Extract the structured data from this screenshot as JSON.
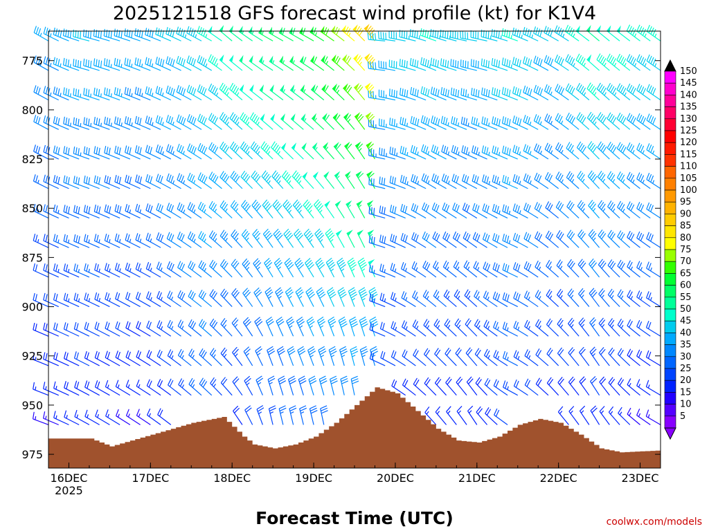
{
  "chart_data": {
    "type": "wind-barb-time-height",
    "title": "2025121518 GFS forecast wind profile (kt) for K1V4",
    "xlabel": "Forecast Time (UTC)",
    "ylabel": "",
    "x_ticks": [
      {
        "label": "16DEC",
        "sublabel": "2025",
        "hour": 6
      },
      {
        "label": "17DEC",
        "sublabel": "",
        "hour": 30
      },
      {
        "label": "18DEC",
        "sublabel": "",
        "hour": 54
      },
      {
        "label": "19DEC",
        "sublabel": "",
        "hour": 78
      },
      {
        "label": "20DEC",
        "sublabel": "",
        "hour": 102
      },
      {
        "label": "21DEC",
        "sublabel": "",
        "hour": 126
      },
      {
        "label": "22DEC",
        "sublabel": "",
        "hour": 150
      },
      {
        "label": "23DEC",
        "sublabel": "",
        "hour": 174
      }
    ],
    "x_range_hours": [
      0,
      180
    ],
    "y_ticks": [
      775,
      800,
      825,
      850,
      875,
      900,
      925,
      950,
      975
    ],
    "y_range_hpa": [
      760,
      982
    ],
    "levels_hpa": [
      765,
      780,
      795,
      810,
      825,
      840,
      855,
      870,
      885,
      900,
      915,
      930,
      945,
      960,
      975
    ],
    "times_hours": [
      0,
      3,
      6,
      9,
      12,
      15,
      18,
      21,
      24,
      27,
      30,
      33,
      36,
      39,
      42,
      45,
      48,
      51,
      54,
      57,
      60,
      63,
      66,
      69,
      72,
      75,
      78,
      81,
      84,
      87,
      90,
      93,
      96,
      99,
      102,
      105,
      108,
      111,
      114,
      117,
      120,
      123,
      126,
      129,
      132,
      135,
      138,
      141,
      144,
      147,
      150,
      153,
      156,
      159,
      162,
      165,
      168,
      171,
      174,
      177,
      180
    ],
    "profile_keyframes": [
      {
        "hour": 0,
        "speed_top": 35,
        "speed_bottom": 12,
        "dir_top": 300,
        "dir_bottom": 290
      },
      {
        "hour": 12,
        "speed_top": 40,
        "speed_bottom": 15,
        "dir_top": 285,
        "dir_bottom": 300
      },
      {
        "hour": 30,
        "speed_top": 38,
        "speed_bottom": 12,
        "dir_top": 290,
        "dir_bottom": 305
      },
      {
        "hour": 48,
        "speed_top": 45,
        "speed_bottom": 25,
        "dir_top": 300,
        "dir_bottom": 315
      },
      {
        "hour": 54,
        "speed_top": 50,
        "speed_bottom": 15,
        "dir_top": 310,
        "dir_bottom": 320
      },
      {
        "hour": 66,
        "speed_top": 55,
        "speed_bottom": 22,
        "dir_top": 300,
        "dir_bottom": 350
      },
      {
        "hour": 78,
        "speed_top": 60,
        "speed_bottom": 25,
        "dir_top": 300,
        "dir_bottom": 350
      },
      {
        "hour": 90,
        "speed_top": 75,
        "speed_bottom": 25,
        "dir_top": 310,
        "dir_bottom": 355
      },
      {
        "hour": 96,
        "speed_top": 85,
        "speed_bottom": 20,
        "dir_top": 320,
        "dir_bottom": 350
      },
      {
        "hour": 99,
        "speed_top": 40,
        "speed_bottom": 15,
        "dir_top": 275,
        "dir_bottom": 300
      },
      {
        "hour": 114,
        "speed_top": 45,
        "speed_bottom": 15,
        "dir_top": 290,
        "dir_bottom": 320
      },
      {
        "hour": 126,
        "speed_top": 40,
        "speed_bottom": 15,
        "dir_top": 280,
        "dir_bottom": 330
      },
      {
        "hour": 138,
        "speed_top": 45,
        "speed_bottom": 20,
        "dir_top": 290,
        "dir_bottom": 300
      },
      {
        "hour": 150,
        "speed_top": 40,
        "speed_bottom": 15,
        "dir_top": 300,
        "dir_bottom": 320
      },
      {
        "hour": 162,
        "speed_top": 50,
        "speed_bottom": 15,
        "dir_top": 310,
        "dir_bottom": 330
      },
      {
        "hour": 180,
        "speed_top": 45,
        "speed_bottom": 10,
        "dir_top": 305,
        "dir_bottom": 300
      }
    ],
    "terrain_pressure_hpa": [
      {
        "hour": 0,
        "p": 967
      },
      {
        "hour": 12,
        "p": 967
      },
      {
        "hour": 18,
        "p": 971
      },
      {
        "hour": 24,
        "p": 968
      },
      {
        "hour": 30,
        "p": 965
      },
      {
        "hour": 36,
        "p": 962
      },
      {
        "hour": 42,
        "p": 959
      },
      {
        "hour": 48,
        "p": 957
      },
      {
        "hour": 51,
        "p": 956
      },
      {
        "hour": 54,
        "p": 961
      },
      {
        "hour": 57,
        "p": 966
      },
      {
        "hour": 60,
        "p": 970
      },
      {
        "hour": 66,
        "p": 972
      },
      {
        "hour": 72,
        "p": 970
      },
      {
        "hour": 78,
        "p": 966
      },
      {
        "hour": 84,
        "p": 959
      },
      {
        "hour": 90,
        "p": 950
      },
      {
        "hour": 96,
        "p": 941
      },
      {
        "hour": 102,
        "p": 944
      },
      {
        "hour": 108,
        "p": 953
      },
      {
        "hour": 114,
        "p": 962
      },
      {
        "hour": 120,
        "p": 968
      },
      {
        "hour": 126,
        "p": 969
      },
      {
        "hour": 132,
        "p": 966
      },
      {
        "hour": 138,
        "p": 960
      },
      {
        "hour": 144,
        "p": 957
      },
      {
        "hour": 150,
        "p": 959
      },
      {
        "hour": 156,
        "p": 965
      },
      {
        "hour": 162,
        "p": 972
      },
      {
        "hour": 168,
        "p": 974
      },
      {
        "hour": 180,
        "p": 973
      }
    ],
    "colorbar": {
      "units": "kt",
      "labels": [
        "150",
        "145",
        "140",
        "135",
        "130",
        "125",
        "120",
        "115",
        "110",
        "105",
        "100",
        "95",
        "90",
        "85",
        "80",
        "75",
        "70",
        "65",
        "60",
        "55",
        "50",
        "45",
        "40",
        "35",
        "30",
        "25",
        "20",
        "15",
        "10",
        "5"
      ],
      "colors": [
        "#ff00ff",
        "#ff00cc",
        "#ff0099",
        "#ff0066",
        "#ff0033",
        "#ff0000",
        "#ff1a00",
        "#ff3300",
        "#ff6600",
        "#ff8000",
        "#ff9900",
        "#ffb300",
        "#ffcc00",
        "#ffe600",
        "#ffff00",
        "#99ff00",
        "#33ff00",
        "#00ff33",
        "#00ff66",
        "#00ff99",
        "#00ffcc",
        "#00ccee",
        "#00aaff",
        "#0088ff",
        "#0066ff",
        "#0044ff",
        "#0022ff",
        "#2200ff",
        "#5500ff",
        "#8800ff"
      ]
    }
  },
  "credit": "coolwx.com/models",
  "colors": {
    "terrain": "#a0522d",
    "credit": "#cc0000"
  }
}
